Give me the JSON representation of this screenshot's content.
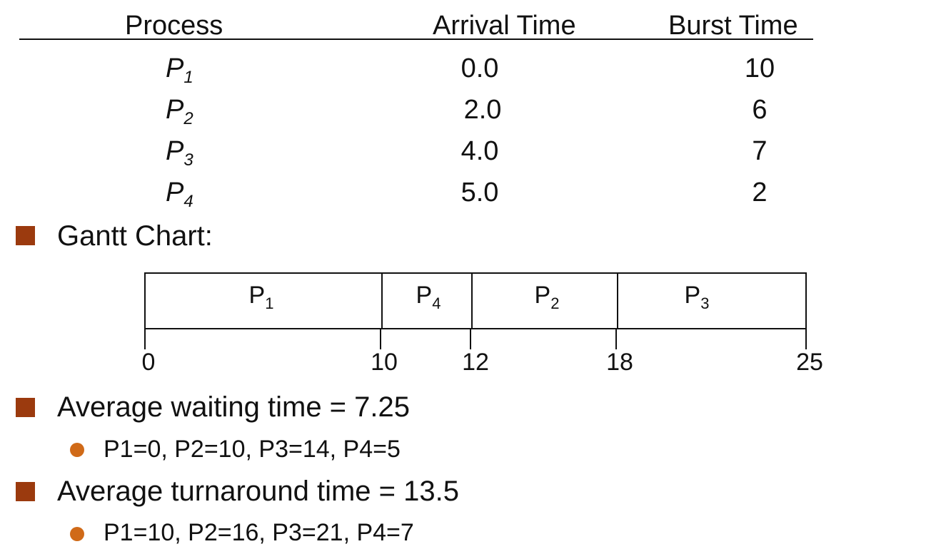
{
  "table": {
    "headers": {
      "process": "Process",
      "arrival": "Arrival Time",
      "burst": "Burst Time"
    },
    "rows": [
      {
        "name": "P",
        "sub": "1",
        "arrival": "0.0",
        "burst": "10"
      },
      {
        "name": "P",
        "sub": "2",
        "arrival": "2.0",
        "burst": "6"
      },
      {
        "name": "P",
        "sub": "3",
        "arrival": "4.0",
        "burst": "7"
      },
      {
        "name": "P",
        "sub": "4",
        "arrival": "5.0",
        "burst": "2"
      }
    ]
  },
  "bullets": {
    "gantt_title": "Gantt Chart:",
    "avg_wait": "Average waiting time = 7.25",
    "wait_detail": "P1=0, P2=10, P3=14, P4=5",
    "avg_turn": "Average turnaround time = 13.5",
    "turn_detail": "P1=10, P2=16, P3=21, P4=7"
  },
  "gantt": {
    "segments": [
      {
        "name": "P",
        "sub": "1",
        "start": 0,
        "end": 10
      },
      {
        "name": "P",
        "sub": "4",
        "start": 10,
        "end": 12
      },
      {
        "name": "P",
        "sub": "2",
        "start": 12,
        "end": 18
      },
      {
        "name": "P",
        "sub": "3",
        "start": 18,
        "end": 25
      }
    ],
    "ticks": [
      "0",
      "10",
      "12",
      "18",
      "25"
    ]
  },
  "colors": {
    "square_bullet": "#9b3a0e",
    "round_bullet": "#d06a18"
  }
}
